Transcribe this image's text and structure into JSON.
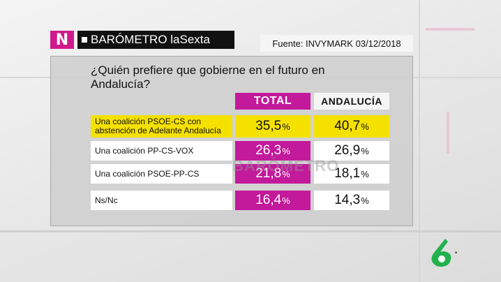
{
  "header": {
    "brand_logo_letter": "N",
    "brand_title": "BARÓMETRO laSexta",
    "source": "Fuente: INVYMARK 03/12/2018"
  },
  "poll": {
    "question": "¿Quién prefiere que gobierne en el futuro en Andalucía?",
    "col_total": "TOTAL",
    "col_region": "ANDALUCÍA",
    "percent_sign": "%",
    "rows": [
      {
        "label": "Una coalición PSOE-CS con abstención de Adelante Andalucía",
        "total": "35,5",
        "region": "40,7",
        "highlight": true
      },
      {
        "label": "Una coalición PP-CS-VOX",
        "total": "26,3",
        "region": "26,9",
        "highlight": false
      },
      {
        "label": "Una coalición PSOE-PP-CS",
        "total": "21,8",
        "region": "18,1",
        "highlight": false
      },
      {
        "label": "Ns/Nc",
        "total": "16,4",
        "region": "14,3",
        "highlight": false
      }
    ]
  },
  "watermark": "BARÓMETRO",
  "channel_logo_mark": "•",
  "colors": {
    "magenta": "#c3199b",
    "highlight_yellow": "#f5e100",
    "logo_green": "#22b14c"
  }
}
